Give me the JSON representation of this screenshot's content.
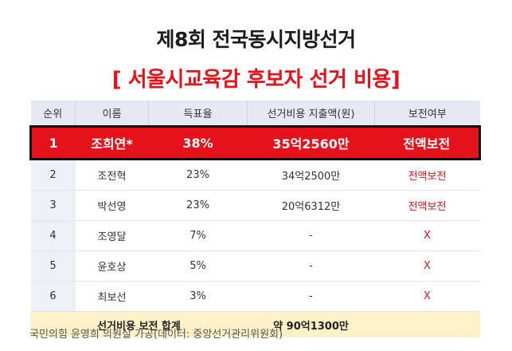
{
  "title": "제8회 전국동시지방선거",
  "subtitle": "[ 서울시교육감 후보자 선거 비용]",
  "columns": [
    "순위",
    "이름",
    "득표율",
    "선거비용 지출액(원)",
    "보전여부"
  ],
  "rows": [
    {
      "rank": "1",
      "name": "조희연*",
      "rate": "38%",
      "cost": "35억2560만",
      "status": "전액보전"
    },
    {
      "rank": "2",
      "name": "조전혁",
      "rate": "23%",
      "cost": "34억2500만",
      "status": "전액보전"
    },
    {
      "rank": "3",
      "name": "박선영",
      "rate": "23%",
      "cost": "20억6312만",
      "status": "전액보전"
    },
    {
      "rank": "4",
      "name": "조영달",
      "rate": "7%",
      "cost": "-",
      "status": "X"
    },
    {
      "rank": "5",
      "name": "윤호상",
      "rate": "5%",
      "cost": "-",
      "status": "X"
    },
    {
      "rank": "6",
      "name": "최보선",
      "rate": "3%",
      "cost": "-",
      "status": "X"
    }
  ],
  "total": {
    "label": "선거비용 보전 합계",
    "value": "약 90억1300만"
  },
  "source": "국민의힘 윤영희 의원실 가공(데이터: 중앙선거관리위원회)",
  "colors": {
    "accent": "#e5121b",
    "header_bg": "#e6e9f3",
    "total_bg": "#fdf1c8"
  }
}
